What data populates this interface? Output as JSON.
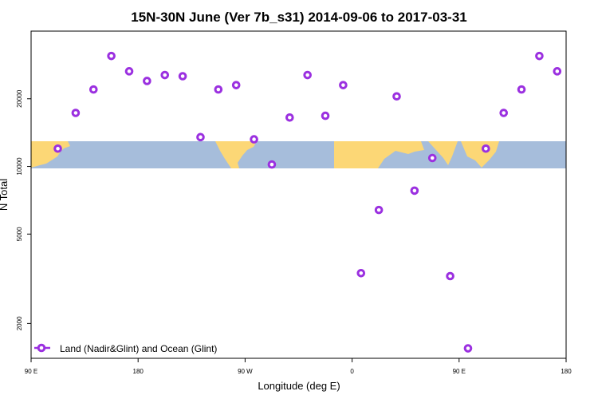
{
  "chart_data": {
    "type": "scatter",
    "title": "15N-30N June (Ver 7b_s31)   2014-09-06 to 2017-03-31",
    "xlabel": "Longitude (deg E)",
    "ylabel": "N Total",
    "y_scale": "log",
    "xlim": [
      -90,
      180
    ],
    "ylim": [
      1400,
      40000
    ],
    "x_ticks": [
      {
        "value": -90,
        "label": "90 E"
      },
      {
        "value": -36,
        "label": "180"
      },
      {
        "value": 18,
        "label": "90 W"
      },
      {
        "value": 72,
        "label": "0"
      },
      {
        "value": 126,
        "label": "90 E"
      },
      {
        "value": 180,
        "label": "180"
      }
    ],
    "y_ticks": [
      {
        "value": 2000,
        "label": "2000"
      },
      {
        "value": 5000,
        "label": "5000"
      },
      {
        "value": 10000,
        "label": "10000"
      },
      {
        "value": 20000,
        "label": "20000"
      }
    ],
    "legend": {
      "position": "bottom-left",
      "entries": [
        {
          "label": "Land (Nadir&Glint) and Ocean (Glint)",
          "color": "#9b30e0"
        }
      ]
    },
    "marker_color": "#9b30e0",
    "map_colors": {
      "land": "#fcd776",
      "ocean": "#a6bddb"
    },
    "map_lat_band": "15N-30N",
    "series": [
      {
        "name": "Land (Nadir&Glint) and Ocean (Glint)",
        "points": [
          {
            "x": -76.5,
            "y": 12000
          },
          {
            "x": -67.5,
            "y": 17300
          },
          {
            "x": -58.5,
            "y": 22000
          },
          {
            "x": -49.5,
            "y": 31000
          },
          {
            "x": -40.5,
            "y": 26500
          },
          {
            "x": -31.5,
            "y": 24000
          },
          {
            "x": -22.5,
            "y": 25500
          },
          {
            "x": -13.5,
            "y": 25200
          },
          {
            "x": -4.5,
            "y": 13500
          },
          {
            "x": 4.5,
            "y": 22000
          },
          {
            "x": 13.5,
            "y": 23000
          },
          {
            "x": 22.5,
            "y": 13200
          },
          {
            "x": 31.5,
            "y": 10200
          },
          {
            "x": 40.5,
            "y": 16500
          },
          {
            "x": 49.5,
            "y": 25500
          },
          {
            "x": 58.5,
            "y": 16800
          },
          {
            "x": 67.5,
            "y": 23000
          },
          {
            "x": 76.5,
            "y": 3350
          },
          {
            "x": 85.5,
            "y": 6400
          },
          {
            "x": 94.5,
            "y": 20500
          },
          {
            "x": 103.5,
            "y": 7800
          },
          {
            "x": 112.5,
            "y": 10900
          },
          {
            "x": 121.5,
            "y": 3250
          },
          {
            "x": 130.5,
            "y": 1550
          },
          {
            "x": 139.5,
            "y": 12000
          },
          {
            "x": 148.5,
            "y": 17300
          },
          {
            "x": 157.5,
            "y": 22000
          },
          {
            "x": 166.5,
            "y": 31000
          },
          {
            "x": 175.5,
            "y": 26500
          }
        ]
      }
    ]
  }
}
